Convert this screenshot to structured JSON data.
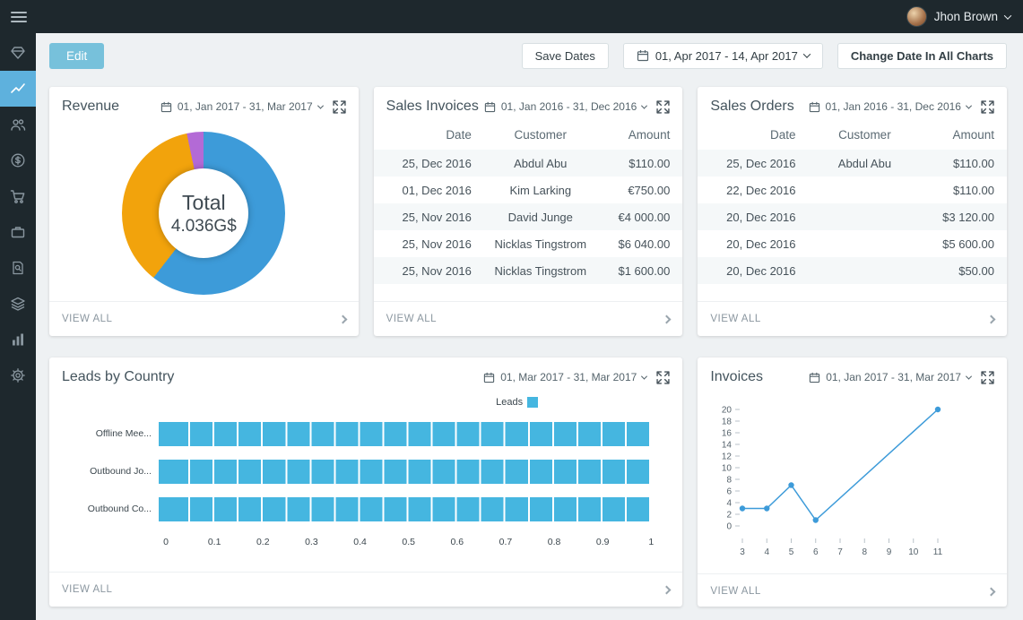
{
  "topbar": {
    "user_name": "Jhon Brown"
  },
  "toolbar": {
    "edit_label": "Edit",
    "save_dates_label": "Save Dates",
    "global_date_range": "01, Apr 2017 - 14, Apr 2017",
    "change_dates_label": "Change Date In All Charts"
  },
  "sidebar": {
    "items": [
      "gem",
      "trend-chart",
      "users",
      "money",
      "cart",
      "briefcase",
      "search-document",
      "layers",
      "bar-chart",
      "gear"
    ],
    "active_item": "trend-chart"
  },
  "cards": {
    "revenue": {
      "title": "Revenue",
      "date_range": "01, Jan 2017 - 31, Mar 2017",
      "view_all": "VIEW ALL"
    },
    "sales_invoices": {
      "title": "Sales Invoices",
      "date_range": "01, Jan 2016 - 31, Dec 2016",
      "view_all": "VIEW ALL",
      "columns": [
        "Date",
        "Customer",
        "Amount"
      ],
      "rows": [
        {
          "date": "25, Dec 2016",
          "customer": "Abdul Abu",
          "amount": "$110.00"
        },
        {
          "date": "01, Dec 2016",
          "customer": "Kim Larking",
          "amount": "€750.00"
        },
        {
          "date": "25, Nov 2016",
          "customer": "David Junge",
          "amount": "€4 000.00"
        },
        {
          "date": "25, Nov 2016",
          "customer": "Nicklas Tingstrom",
          "amount": "$6 040.00"
        },
        {
          "date": "25, Nov 2016",
          "customer": "Nicklas Tingstrom",
          "amount": "$1 600.00"
        }
      ]
    },
    "sales_orders": {
      "title": "Sales Orders",
      "date_range": "01, Jan 2016 - 31, Dec 2016",
      "view_all": "VIEW ALL",
      "columns": [
        "Date",
        "Customer",
        "Amount"
      ],
      "rows": [
        {
          "date": "25, Dec 2016",
          "customer": "Abdul Abu",
          "amount": "$110.00"
        },
        {
          "date": "22, Dec 2016",
          "customer": "",
          "amount": "$110.00"
        },
        {
          "date": "20, Dec 2016",
          "customer": "",
          "amount": "$3 120.00"
        },
        {
          "date": "20, Dec 2016",
          "customer": "",
          "amount": "$5 600.00"
        },
        {
          "date": "20, Dec 2016",
          "customer": "",
          "amount": "$50.00"
        }
      ]
    },
    "leads": {
      "title": "Leads by Country",
      "date_range": "01, Mar 2017 - 31, Mar 2017",
      "view_all": "VIEW ALL"
    },
    "invoices": {
      "title": "Invoices",
      "date_range": "01, Jan 2017 - 31, Mar 2017",
      "view_all": "VIEW ALL"
    }
  },
  "chart_data": [
    {
      "id": "revenue-donut",
      "type": "pie",
      "title": "Revenue",
      "center_label": "Total",
      "center_value": "4.036G$",
      "segments": [
        {
          "share": 60.5,
          "color": "#3d9bd9"
        },
        {
          "share": 36.2,
          "color": "#f2a30c"
        },
        {
          "share": 3.3,
          "color": "#b36ad6"
        }
      ]
    },
    {
      "id": "leads-bars",
      "type": "bar",
      "orientation": "horizontal",
      "legend": "Leads",
      "categories": [
        "Offline Mee...",
        "Outbound Jo...",
        "Outbound Co..."
      ],
      "values": [
        1,
        1,
        1
      ],
      "xlim": [
        0,
        1
      ],
      "x_ticks": [
        "0",
        "0.1",
        "0.2",
        "0.3",
        "0.4",
        "0.5",
        "0.6",
        "0.7",
        "0.8",
        "0.9",
        "1"
      ],
      "bar_color": "#45b6e0"
    },
    {
      "id": "invoices-line",
      "type": "line",
      "points": [
        {
          "x": 3,
          "y": 3
        },
        {
          "x": 4,
          "y": 3
        },
        {
          "x": 5,
          "y": 7
        },
        {
          "x": 6,
          "y": 1
        },
        {
          "x": 11,
          "y": 20
        }
      ],
      "xlim": [
        3,
        11
      ],
      "ylim": [
        0,
        20
      ],
      "x_ticks": [
        3,
        4,
        5,
        6,
        7,
        8,
        9,
        10,
        11
      ],
      "y_ticks": [
        0,
        2,
        4,
        6,
        8,
        10,
        12,
        14,
        16,
        18,
        20
      ],
      "line_color": "#3d9bd9"
    }
  ]
}
